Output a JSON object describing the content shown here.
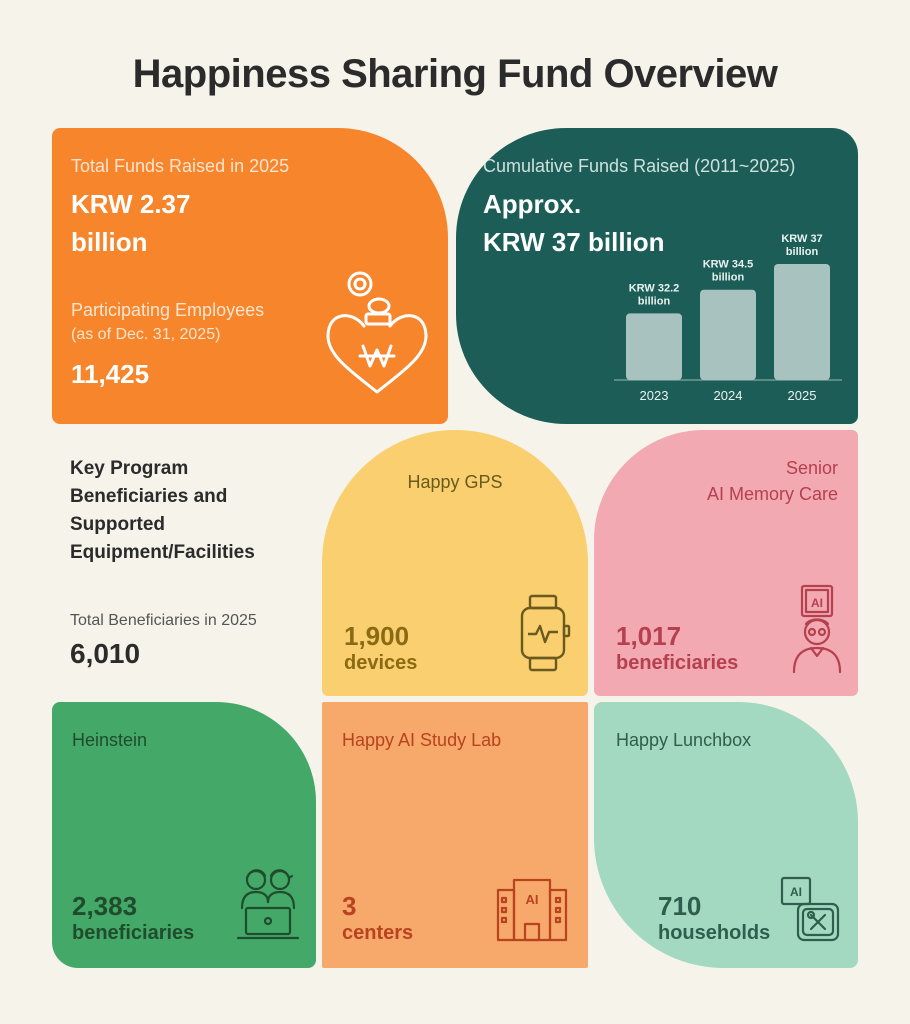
{
  "title": "Happiness Sharing Fund Overview",
  "total": {
    "label": "Total Funds Raised in 2025",
    "value_line1": "KRW 2.37",
    "value_line2": "billion",
    "participants_label": "Participating Employees",
    "participants_note": "(as of Dec. 31, 2025)",
    "participants_value": "11,425",
    "icon": "heart-coin-won-icon"
  },
  "cumulative": {
    "label": "Cumulative Funds Raised (2011~2025)",
    "value_line1": "Approx.",
    "value_line2": "KRW 37 billion"
  },
  "chart_data": {
    "type": "bar",
    "categories": [
      "2023",
      "2024",
      "2025"
    ],
    "values": [
      32.2,
      34.5,
      37
    ],
    "data_labels": [
      [
        "KRW 32.2",
        "billion"
      ],
      [
        "KRW 34.5",
        "billion"
      ],
      [
        "KRW 37",
        "billion"
      ]
    ],
    "title": "",
    "xlabel": "",
    "ylabel": "",
    "unit": "KRW billion",
    "bar_color": "#a8c3bf"
  },
  "key": {
    "heading_lines": [
      "Key Program",
      "Beneficiaries and",
      "Supported",
      "Equipment/Facilities"
    ],
    "total_label": "Total Beneficiaries in 2025",
    "total_value": "6,010"
  },
  "gps": {
    "name": "Happy GPS",
    "value": "1,900",
    "unit": "devices",
    "icon": "smartwatch-heartbeat-icon"
  },
  "senior": {
    "name_line1": "Senior",
    "name_line2": "AI Memory Care",
    "value": "1,017",
    "unit": "beneficiaries",
    "icon": "senior-ai-icon"
  },
  "heinstein": {
    "name": "Heinstein",
    "value": "2,383",
    "unit": "beneficiaries",
    "icon": "children-laptop-icon"
  },
  "ailab": {
    "name": "Happy AI Study Lab",
    "value": "3",
    "unit": "centers",
    "icon": "ai-building-icon"
  },
  "lunch": {
    "name": "Happy Lunchbox",
    "value": "710",
    "unit": "households",
    "icon": "ai-lunchbox-icon"
  },
  "colors": {
    "orange": "#f6852c",
    "teal": "#1c5e57",
    "yellow": "#f9cf70",
    "pink": "#f3a9b1",
    "green": "#44a869",
    "light_orange": "#f7a86b",
    "mint": "#a4d9c1"
  }
}
